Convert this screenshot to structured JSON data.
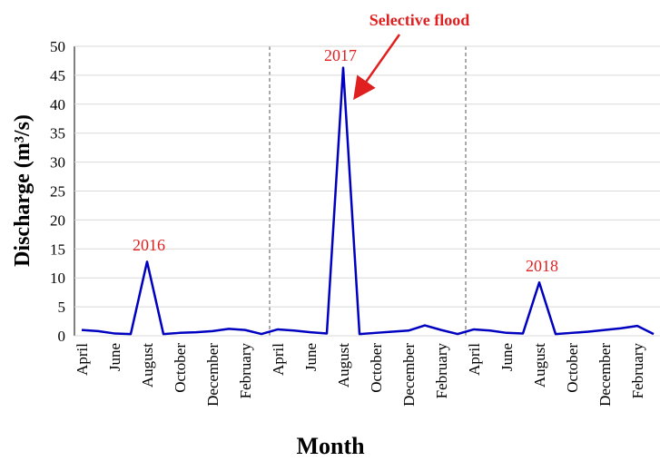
{
  "chart_data": {
    "type": "line",
    "xlabel": "Month",
    "ylabel": "Discharge  (m³/s)",
    "categories": [
      "April",
      null,
      "June",
      null,
      "August",
      null,
      "October",
      null,
      "December",
      null,
      "February",
      null,
      "April",
      null,
      "June",
      null,
      "August",
      null,
      "October",
      null,
      "December",
      null,
      "February",
      null,
      "April",
      null,
      "June",
      null,
      "August",
      null,
      "October",
      null,
      "December",
      null,
      "February",
      null
    ],
    "series": [
      {
        "color": "#0000c0",
        "values": [
          1,
          0.8,
          0.4,
          0.3,
          12.8,
          0.3,
          0.5,
          0.6,
          0.8,
          1.2,
          1.0,
          0.3,
          1.1,
          0.9,
          0.6,
          0.4,
          46.3,
          0.3,
          0.5,
          0.7,
          0.9,
          1.8,
          1.0,
          0.3,
          1.1,
          0.9,
          0.5,
          0.4,
          9.2,
          0.3,
          0.5,
          0.7,
          1.0,
          1.3,
          1.7,
          0.3
        ]
      }
    ],
    "ylim": [
      0,
      50
    ],
    "yticks": [
      0,
      5,
      10,
      15,
      20,
      25,
      30,
      35,
      40,
      45,
      50
    ],
    "grid": true,
    "annotations": [
      "2016",
      "2017",
      "2018",
      "Selective flood"
    ]
  }
}
